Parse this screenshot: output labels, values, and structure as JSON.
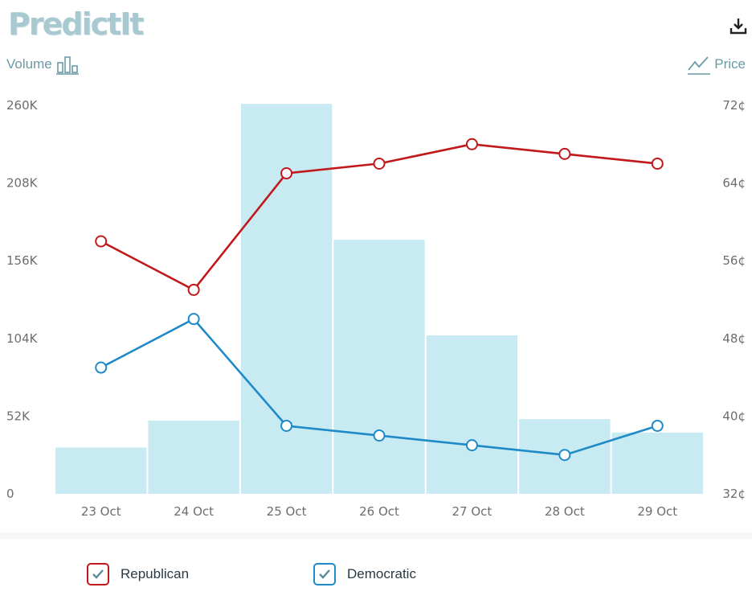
{
  "header": {
    "logo_text": "PredictIt",
    "volume_label": "Volume",
    "price_label": "Price",
    "download_icon": "download-icon",
    "volume_icon": "bar-chart-icon",
    "price_icon": "line-chart-icon"
  },
  "colors": {
    "republican": "#c0181b",
    "democratic": "#1e8ac8",
    "volume_bar": "#c8ebf3",
    "toggle": "#6a9aa6"
  },
  "chart_data": {
    "type": "bar",
    "categories": [
      "23 Oct",
      "24 Oct",
      "25 Oct",
      "26 Oct",
      "27 Oct",
      "28 Oct",
      "29 Oct"
    ],
    "volume": {
      "values": [
        31000,
        49000,
        261000,
        170000,
        106000,
        50000,
        41000
      ],
      "ylim": [
        0,
        260000
      ],
      "ticks": [
        "0",
        "52K",
        "104K",
        "156K",
        "208K",
        "260K"
      ]
    },
    "price": {
      "ylim": [
        32,
        72
      ],
      "ticks": [
        "32¢",
        "40¢",
        "48¢",
        "56¢",
        "64¢",
        "72¢"
      ]
    },
    "series": [
      {
        "name": "Republican",
        "type": "line",
        "values": [
          58,
          53,
          65,
          66,
          68,
          67,
          66
        ]
      },
      {
        "name": "Democratic",
        "type": "line",
        "values": [
          45,
          50,
          39,
          38,
          37,
          36,
          39
        ]
      }
    ]
  },
  "legend": {
    "items": [
      {
        "label": "Republican",
        "color": "#c0181b",
        "checked": true
      },
      {
        "label": "Democratic",
        "color": "#1e8ac8",
        "checked": true
      }
    ]
  }
}
